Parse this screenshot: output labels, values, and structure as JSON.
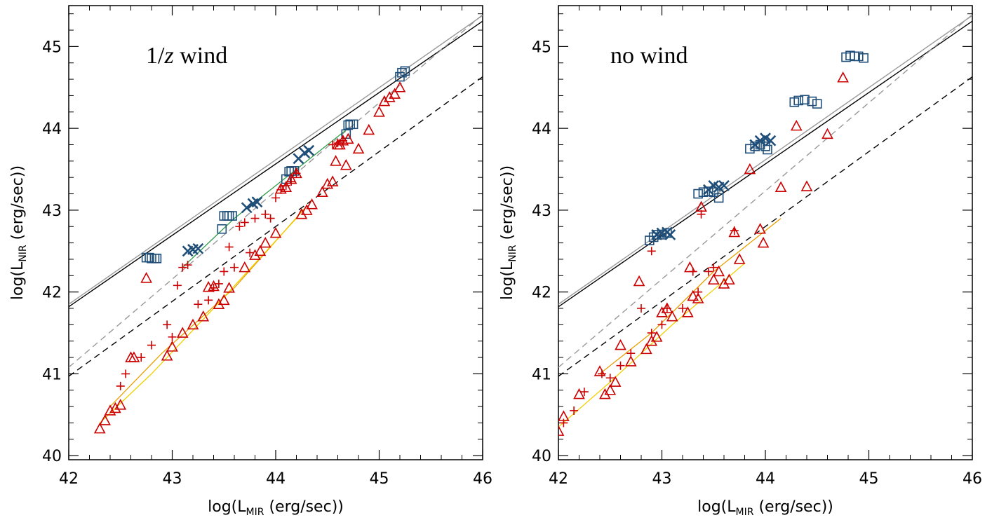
{
  "chart_data": [
    {
      "type": "scatter",
      "title_parts": [
        "1/",
        "z",
        " wind"
      ],
      "xlabel": {
        "prefix": "log(L",
        "sub": "MIR",
        "suffix": " (erg/sec))"
      },
      "ylabel": {
        "prefix": "log(L",
        "sub": "NIR",
        "suffix": " (erg/sec))"
      },
      "xlim": [
        42,
        46
      ],
      "ylim": [
        39.95,
        45.5
      ],
      "xticks": [
        "42",
        "43",
        "44",
        "45",
        "46"
      ],
      "yticks": [
        "40",
        "41",
        "42",
        "43",
        "44",
        "45"
      ],
      "grid": false,
      "legend": "none",
      "reference_lines": [
        {
          "x": [
            42,
            46
          ],
          "y": [
            41.82,
            45.31
          ],
          "color": "#000000",
          "dash": "solid"
        },
        {
          "x": [
            42,
            46
          ],
          "y": [
            41.85,
            45.38
          ],
          "color": "#999999",
          "dash": "solid"
        },
        {
          "x": [
            42,
            46
          ],
          "y": [
            41.08,
            45.39
          ],
          "color": "#999999",
          "dash": "dashed"
        },
        {
          "x": [
            42,
            46
          ],
          "y": [
            40.97,
            44.63
          ],
          "color": "#000000",
          "dash": "dashed"
        }
      ],
      "tracks": [
        {
          "color": "#2e9e4a",
          "x": [
            43.1,
            43.6,
            44.1,
            44.7
          ],
          "y": [
            42.3,
            42.9,
            43.4,
            44.0
          ]
        },
        {
          "color": "#e8a000",
          "x": [
            42.4,
            42.9,
            43.6,
            44.3
          ],
          "y": [
            40.6,
            41.25,
            42.05,
            43.05
          ]
        },
        {
          "color": "#f0d000",
          "x": [
            42.3,
            42.8,
            43.4,
            44.2
          ],
          "y": [
            40.4,
            41.0,
            41.8,
            42.9
          ]
        }
      ],
      "series": [
        {
          "marker": "square",
          "color": "#1f4e79",
          "x": [
            42.75,
            42.78,
            42.8,
            42.83,
            42.85,
            43.48,
            43.5,
            43.53,
            43.55,
            43.58,
            44.1,
            44.13,
            44.15,
            44.18,
            44.68,
            44.7,
            44.72,
            44.75,
            45.2,
            45.22,
            45.25
          ],
          "y": [
            42.42,
            42.42,
            42.41,
            42.41,
            42.41,
            42.77,
            42.93,
            42.93,
            42.93,
            42.93,
            43.38,
            43.47,
            43.48,
            43.48,
            43.93,
            44.04,
            44.05,
            44.05,
            44.63,
            44.68,
            44.7
          ]
        },
        {
          "marker": "x",
          "color": "#1f4e79",
          "x": [
            43.15,
            43.2,
            43.25,
            43.72,
            43.78,
            43.82,
            44.22,
            44.28,
            44.32
          ],
          "y": [
            42.5,
            42.52,
            42.53,
            43.03,
            43.08,
            43.1,
            43.63,
            43.7,
            43.73
          ]
        },
        {
          "marker": "triangle",
          "color": "#cc0000",
          "x": [
            42.3,
            42.35,
            42.4,
            42.45,
            42.5,
            42.6,
            42.75,
            42.95,
            43.0,
            43.1,
            43.2,
            43.3,
            43.4,
            43.45,
            43.5,
            43.55,
            43.7,
            43.8,
            43.85,
            43.9,
            44.0,
            44.05,
            44.1,
            44.15,
            44.2,
            44.25,
            44.3,
            44.35,
            44.45,
            44.5,
            44.55,
            44.6,
            44.65,
            44.7,
            44.8,
            44.9,
            45.0,
            45.05,
            45.1,
            45.15,
            45.2,
            44.62,
            44.68,
            44.58,
            43.35,
            42.63
          ],
          "y": [
            40.33,
            40.43,
            40.55,
            40.58,
            40.62,
            41.2,
            42.17,
            41.22,
            41.33,
            41.5,
            41.6,
            41.7,
            42.07,
            41.85,
            41.9,
            42.05,
            42.3,
            42.45,
            42.5,
            42.6,
            42.72,
            43.26,
            43.28,
            43.38,
            43.45,
            42.95,
            43.0,
            43.07,
            43.22,
            43.32,
            43.35,
            43.8,
            43.85,
            43.87,
            43.75,
            43.98,
            44.2,
            44.33,
            44.38,
            44.42,
            44.5,
            43.8,
            43.55,
            43.6,
            42.06,
            41.2
          ]
        },
        {
          "marker": "plus",
          "color": "#cc0000",
          "x": [
            42.5,
            42.55,
            42.7,
            42.8,
            42.95,
            43.0,
            43.05,
            43.1,
            43.15,
            43.25,
            43.35,
            43.4,
            43.45,
            43.5,
            43.55,
            43.6,
            43.65,
            43.7,
            43.75,
            43.8,
            43.9,
            43.95,
            44.0,
            44.05,
            44.1,
            44.15,
            44.2,
            44.55,
            44.6,
            44.65
          ],
          "y": [
            40.85,
            41.0,
            41.2,
            41.35,
            41.6,
            41.45,
            42.08,
            42.3,
            42.33,
            41.85,
            41.9,
            42.05,
            42.1,
            42.25,
            42.55,
            42.3,
            42.8,
            42.85,
            42.48,
            42.9,
            42.95,
            42.9,
            43.15,
            43.25,
            43.3,
            43.35,
            43.45,
            43.8,
            43.82,
            43.85
          ]
        }
      ]
    },
    {
      "type": "scatter",
      "title_parts": [
        "no wind"
      ],
      "xlabel": {
        "prefix": "log(L",
        "sub": "MIR",
        "suffix": " (erg/sec))"
      },
      "ylabel": {
        "prefix": "log(L",
        "sub": "NIR",
        "suffix": " (erg/sec))"
      },
      "xlim": [
        42,
        46
      ],
      "ylim": [
        39.95,
        45.5
      ],
      "xticks": [
        "42",
        "43",
        "44",
        "45",
        "46"
      ],
      "yticks": [
        "40",
        "41",
        "42",
        "43",
        "44",
        "45"
      ],
      "grid": false,
      "legend": "none",
      "reference_lines": [
        {
          "x": [
            42,
            46
          ],
          "y": [
            41.82,
            45.31
          ],
          "color": "#000000",
          "dash": "solid"
        },
        {
          "x": [
            42,
            46
          ],
          "y": [
            41.85,
            45.38
          ],
          "color": "#999999",
          "dash": "solid"
        },
        {
          "x": [
            42,
            46
          ],
          "y": [
            41.08,
            45.39
          ],
          "color": "#999999",
          "dash": "dashed"
        },
        {
          "x": [
            42,
            46
          ],
          "y": [
            40.97,
            44.63
          ],
          "color": "#000000",
          "dash": "dashed"
        }
      ],
      "tracks": [
        {
          "color": "#e8a000",
          "x": [
            42.4,
            42.9,
            43.5,
            44.15
          ],
          "y": [
            41.0,
            41.5,
            42.25,
            42.9
          ]
        },
        {
          "color": "#f0d000",
          "x": [
            42.0,
            42.5,
            43.1,
            43.8
          ],
          "y": [
            40.35,
            40.9,
            41.6,
            42.35
          ]
        }
      ],
      "series": [
        {
          "marker": "square",
          "color": "#1f4e79",
          "x": [
            42.88,
            42.92,
            42.95,
            43.0,
            43.05,
            43.35,
            43.4,
            43.45,
            43.5,
            43.55,
            43.85,
            43.9,
            43.95,
            44.0,
            44.02,
            44.28,
            44.32,
            44.38,
            44.45,
            44.5,
            44.78,
            44.82,
            44.86,
            44.9,
            44.95
          ],
          "y": [
            42.63,
            42.67,
            42.7,
            42.7,
            42.72,
            43.2,
            43.22,
            43.23,
            43.22,
            43.15,
            43.75,
            43.78,
            43.8,
            43.78,
            43.74,
            44.32,
            44.34,
            44.35,
            44.33,
            44.3,
            44.87,
            44.89,
            44.88,
            44.88,
            44.86
          ]
        },
        {
          "marker": "x",
          "color": "#1f4e79",
          "x": [
            42.95,
            43.0,
            43.05,
            43.08,
            43.45,
            43.5,
            43.55,
            43.6,
            43.9,
            43.95,
            44.0,
            44.05
          ],
          "y": [
            42.7,
            42.72,
            42.73,
            42.7,
            43.25,
            43.3,
            43.28,
            43.3,
            43.8,
            43.85,
            43.88,
            43.85
          ]
        },
        {
          "marker": "triangle",
          "color": "#cc0000",
          "x": [
            42.0,
            42.05,
            42.2,
            42.4,
            42.45,
            42.5,
            42.55,
            42.6,
            42.7,
            42.78,
            42.85,
            42.9,
            42.95,
            43.0,
            43.05,
            43.1,
            43.25,
            43.3,
            43.35,
            43.5,
            43.55,
            43.6,
            43.65,
            43.7,
            43.75,
            43.85,
            43.95,
            43.98,
            44.15,
            44.3,
            44.4,
            44.6,
            44.75,
            43.38,
            43.27
          ],
          "y": [
            40.3,
            40.48,
            40.75,
            41.03,
            40.75,
            40.8,
            40.9,
            41.35,
            41.15,
            42.13,
            41.3,
            41.4,
            41.45,
            41.75,
            41.8,
            41.7,
            41.75,
            41.95,
            41.92,
            42.15,
            42.25,
            42.1,
            42.15,
            42.73,
            42.4,
            43.5,
            42.77,
            42.6,
            43.28,
            44.03,
            43.29,
            43.93,
            44.62,
            43.04,
            42.3
          ]
        },
        {
          "marker": "plus",
          "color": "#cc0000",
          "x": [
            42.05,
            42.15,
            42.25,
            42.42,
            42.5,
            42.6,
            42.7,
            42.8,
            42.9,
            42.9,
            43.0,
            43.05,
            43.2,
            43.3,
            43.35,
            43.45,
            43.5,
            43.7,
            43.38
          ],
          "y": [
            40.4,
            40.55,
            40.78,
            41.0,
            40.95,
            41.1,
            41.25,
            41.8,
            41.5,
            42.5,
            41.6,
            41.8,
            41.8,
            42.25,
            42.0,
            42.25,
            42.3,
            42.75,
            42.95
          ]
        }
      ]
    }
  ]
}
